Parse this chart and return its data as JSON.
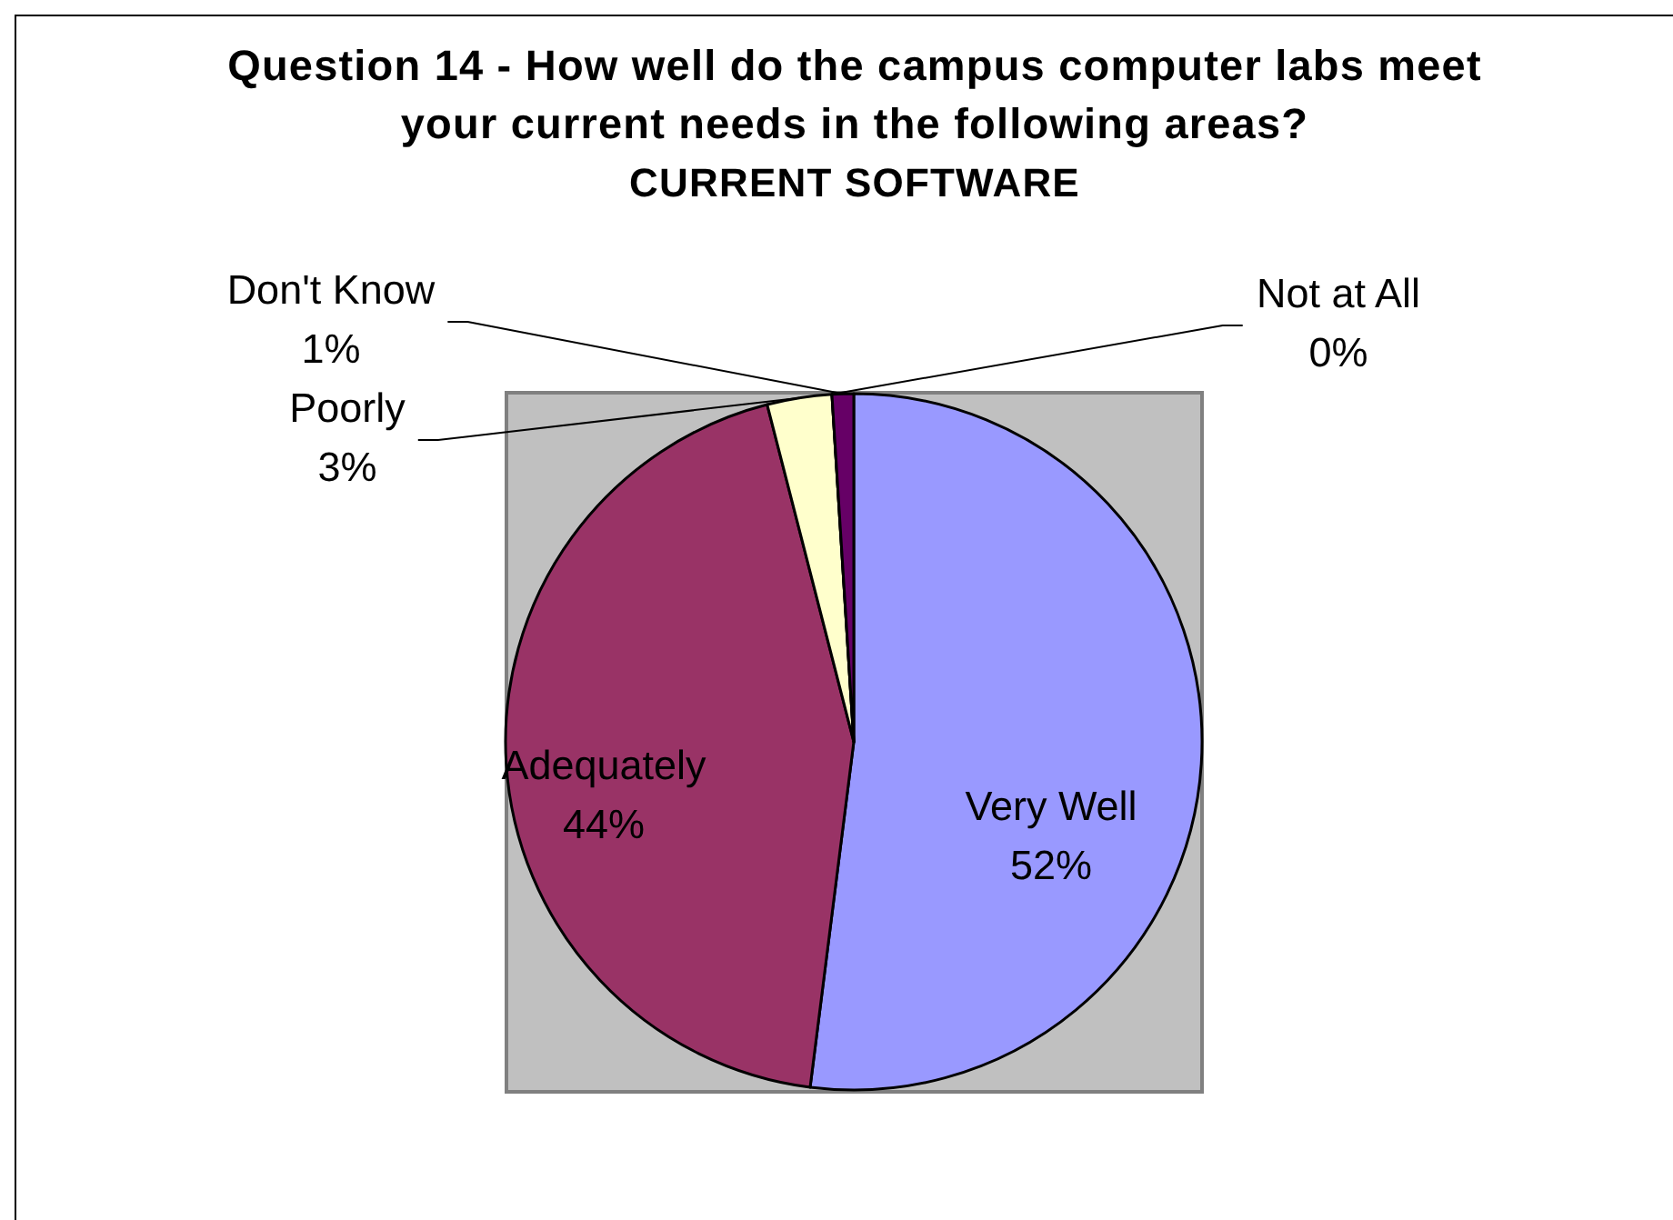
{
  "chart_data": {
    "type": "pie",
    "title": "Question 14 - How well do the campus computer labs meet your current needs in the following areas?",
    "subtitle": "CURRENT SOFTWARE",
    "categories": [
      "Very Well",
      "Adequately",
      "Poorly",
      "Not at All",
      "Don't Know"
    ],
    "values": [
      52,
      44,
      3,
      0,
      1
    ],
    "colors": [
      "#9999ff",
      "#993366",
      "#ffffcc",
      "#ccffff",
      "#660066"
    ],
    "value_labels": [
      "52%",
      "44%",
      "3%",
      "0%",
      "1%"
    ]
  }
}
